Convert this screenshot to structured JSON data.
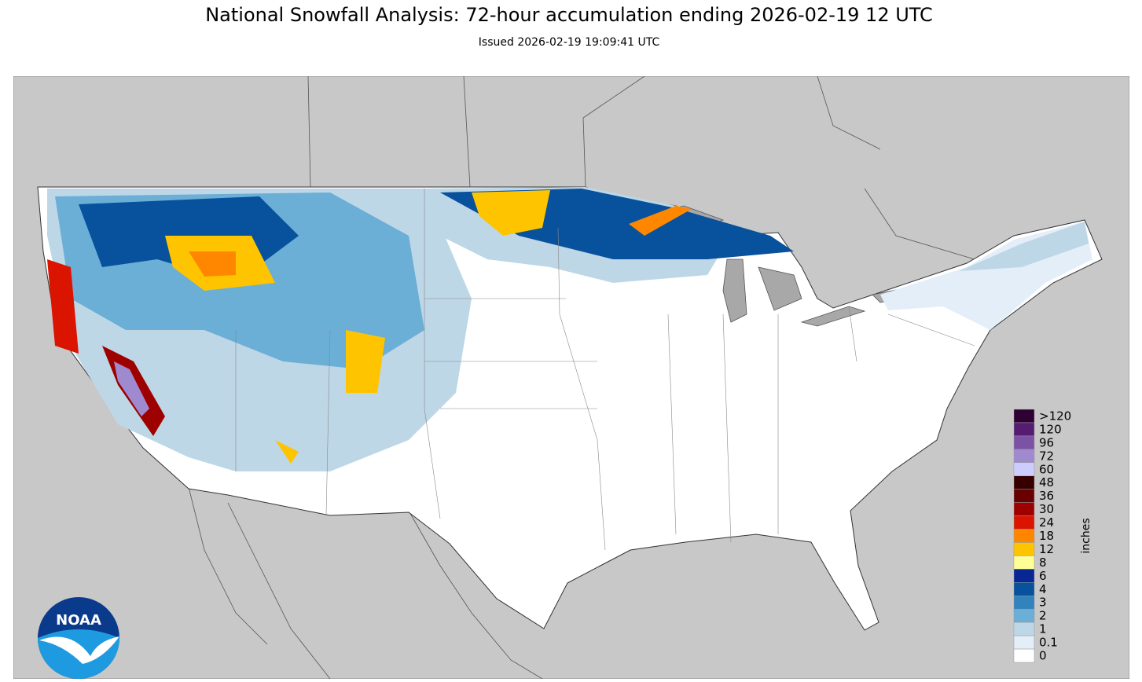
{
  "header": {
    "title": "National Snowfall Analysis: 72-hour accumulation ending 2026-02-19 12 UTC",
    "subtitle": "Issued 2026-02-19 19:09:41 UTC"
  },
  "legend": {
    "unit": "inches",
    "levels": [
      {
        "label": ">120",
        "color": "#2e0033"
      },
      {
        "label": "120",
        "color": "#561c72"
      },
      {
        "label": "96",
        "color": "#7c52a5"
      },
      {
        "label": "72",
        "color": "#9f8ad0"
      },
      {
        "label": "60",
        "color": "#ccccff"
      },
      {
        "label": "48",
        "color": "#360000"
      },
      {
        "label": "36",
        "color": "#690000"
      },
      {
        "label": "30",
        "color": "#9e0000"
      },
      {
        "label": "24",
        "color": "#db1400"
      },
      {
        "label": "18",
        "color": "#ff8700"
      },
      {
        "label": "12",
        "color": "#ffc400"
      },
      {
        "label": "8",
        "color": "#ffff96"
      },
      {
        "label": "6",
        "color": "#082694"
      },
      {
        "label": "4",
        "color": "#08519c"
      },
      {
        "label": "3",
        "color": "#3182bd"
      },
      {
        "label": "2",
        "color": "#6baed6"
      },
      {
        "label": "1",
        "color": "#bdd7e7"
      },
      {
        "label": "0.1",
        "color": "#e4eef9"
      },
      {
        "label": "0",
        "color": "#ffffff"
      }
    ]
  },
  "logo": {
    "text": "NOAA"
  }
}
